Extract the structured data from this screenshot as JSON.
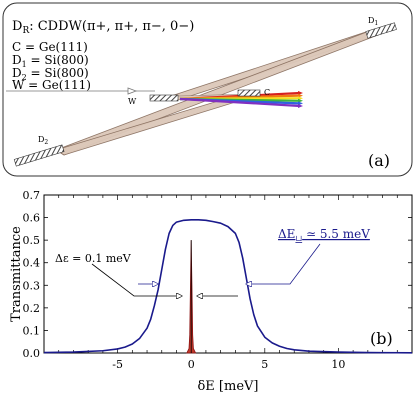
{
  "panel_a": {
    "title_prefix": "D",
    "title_sub": "R",
    "title_rest": ": CDDW(π+, π+, π−, 0−)",
    "crystals": [
      {
        "a": "C",
        "sub": "",
        "b": " = Ge(111)"
      },
      {
        "a": "D",
        "sub": "1",
        "b": " = Si(800)"
      },
      {
        "a": "D",
        "sub": "2",
        "b": " = Si(800)"
      },
      {
        "a": "W",
        "sub": "",
        "b": " = Ge(111)"
      }
    ],
    "label_D1": "D",
    "label_D1_sub": "1",
    "label_D2": "D",
    "label_D2_sub": "2",
    "label_W": "W",
    "label_C": "C",
    "panel_label": "(a)",
    "colors": {
      "beam_fill": "#dcc8b9",
      "beam_edge": "#8a7060",
      "crystal": "#555555",
      "spectrum": [
        "#d62020",
        "#f07a10",
        "#f4e020",
        "#3cb43c",
        "#3060e0",
        "#8030c0"
      ]
    }
  },
  "panel_b": {
    "annotation_eps": "Δε = 0.1 meV",
    "annotation_E_sym": "ΔE",
    "annotation_E_sub": "⊔",
    "annotation_E_val": " ≃ 5.5 meV",
    "panel_label": "(b)"
  },
  "chart_data": {
    "type": "line",
    "xlabel": "δE [meV]",
    "ylabel": "Transmittance",
    "xlim": [
      -10,
      15
    ],
    "ylim": [
      0,
      0.7
    ],
    "x_ticks": [
      -5,
      0,
      5,
      10
    ],
    "y_ticks": [
      0.0,
      0.1,
      0.2,
      0.3,
      0.4,
      0.5,
      0.6,
      0.7
    ],
    "grid": false,
    "series": [
      {
        "color": "#1a1a8c",
        "x": [
          -10,
          -8,
          -6,
          -5,
          -4.5,
          -4,
          -3.5,
          -3,
          -2.75,
          -2.5,
          -2.25,
          -2,
          -1.75,
          -1.5,
          -1.25,
          -1,
          -0.5,
          0,
          0.5,
          1,
          1.5,
          2,
          2.5,
          3,
          3.25,
          3.5,
          3.75,
          4,
          4.25,
          4.5,
          5,
          5.5,
          6,
          6.5,
          7,
          8,
          10,
          12,
          15
        ],
        "y": [
          0.002,
          0.004,
          0.01,
          0.018,
          0.026,
          0.04,
          0.065,
          0.11,
          0.15,
          0.21,
          0.28,
          0.37,
          0.46,
          0.53,
          0.565,
          0.58,
          0.588,
          0.59,
          0.59,
          0.588,
          0.582,
          0.575,
          0.56,
          0.53,
          0.49,
          0.42,
          0.33,
          0.24,
          0.17,
          0.12,
          0.07,
          0.045,
          0.03,
          0.02,
          0.014,
          0.008,
          0.004,
          0.002,
          0.001
        ]
      },
      {
        "color": "#8b1010",
        "x": [
          -0.3,
          -0.15,
          -0.1,
          -0.05,
          0,
          0.05,
          0.1,
          0.15,
          0.3
        ],
        "y": [
          0.0,
          0.02,
          0.08,
          0.3,
          0.5,
          0.3,
          0.08,
          0.02,
          0.0
        ]
      }
    ]
  }
}
